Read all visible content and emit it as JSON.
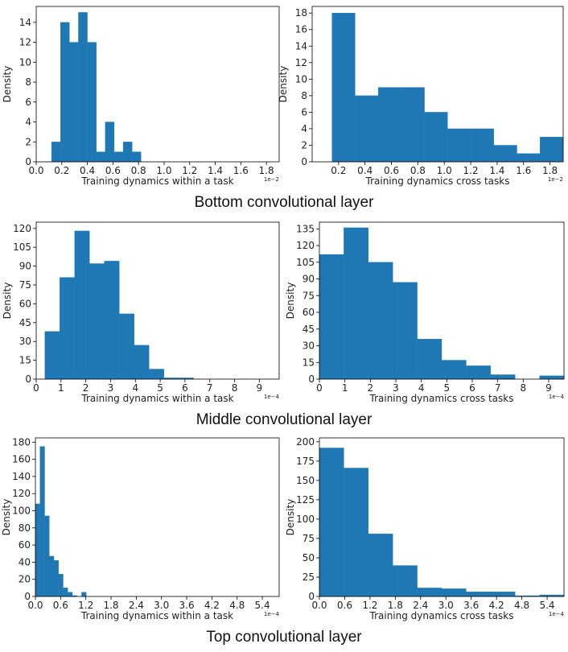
{
  "colors": {
    "bar": "#1f77b4",
    "bar_edge": "#2a7fbf",
    "axis": "#000000"
  },
  "sections": [
    {
      "title": "Bottom convolutional layer"
    },
    {
      "title": "Middle convolutional layer"
    },
    {
      "title": "Top convolutional layer"
    }
  ],
  "chart_data": [
    {
      "type": "bar",
      "title": "",
      "xlabel": "Training dynamics within a task",
      "ylabel": "Density",
      "sci_label": "1e−2",
      "xlim": [
        0.0,
        1.9
      ],
      "ylim": [
        0,
        15.6
      ],
      "xticks": [
        0.0,
        0.2,
        0.4,
        0.6,
        0.8,
        1.0,
        1.2,
        1.4,
        1.6,
        1.8
      ],
      "xtick_labels": [
        "0.0",
        "0.2",
        "0.4",
        "0.6",
        "0.8",
        "1.0",
        "1.2",
        "1.4",
        "1.6",
        "1.8"
      ],
      "yticks": [
        0,
        2,
        4,
        6,
        8,
        10,
        12,
        14
      ],
      "ytick_labels": [
        "0",
        "2",
        "4",
        "6",
        "8",
        "10",
        "12",
        "14"
      ],
      "bin_edges": [
        0.12,
        0.19,
        0.26,
        0.33,
        0.4,
        0.47,
        0.54,
        0.61,
        0.68,
        0.75,
        0.82
      ],
      "values": [
        2,
        14,
        12,
        15,
        12,
        1,
        4,
        1,
        2,
        1
      ]
    },
    {
      "type": "bar",
      "title": "",
      "xlabel": "Training dynamics cross tasks",
      "ylabel": "Density",
      "sci_label": "1e−2",
      "xlim": [
        0.0,
        1.9
      ],
      "ylim": [
        0,
        18.8
      ],
      "xticks": [
        0.2,
        0.4,
        0.6,
        0.8,
        1.0,
        1.2,
        1.4,
        1.6,
        1.8
      ],
      "xtick_labels": [
        "0.2",
        "0.4",
        "0.6",
        "0.8",
        "1.0",
        "1.2",
        "1.4",
        "1.6",
        "1.8"
      ],
      "yticks": [
        0,
        2,
        4,
        6,
        8,
        10,
        12,
        14,
        16,
        18
      ],
      "ytick_labels": [
        "0",
        "2",
        "4",
        "6",
        "8",
        "10",
        "12",
        "14",
        "16",
        "18"
      ],
      "bin_edges": [
        0.15,
        0.325,
        0.5,
        0.675,
        0.85,
        1.025,
        1.2,
        1.375,
        1.55,
        1.725,
        1.9
      ],
      "values": [
        18,
        8,
        9,
        9,
        6,
        4,
        4,
        2,
        1,
        3
      ]
    },
    {
      "type": "bar",
      "title": "",
      "xlabel": "Training dynamics within a task",
      "ylabel": "Density",
      "sci_label": "1e−4",
      "xlim": [
        0,
        9.8
      ],
      "ylim": [
        0,
        125
      ],
      "xticks": [
        0,
        1,
        2,
        3,
        4,
        5,
        6,
        7,
        8,
        9
      ],
      "xtick_labels": [
        "0",
        "1",
        "2",
        "3",
        "4",
        "5",
        "6",
        "7",
        "8",
        "9"
      ],
      "yticks": [
        0,
        15,
        30,
        45,
        60,
        75,
        90,
        105,
        120
      ],
      "ytick_labels": [
        "0",
        "15",
        "30",
        "45",
        "60",
        "75",
        "90",
        "105",
        "120"
      ],
      "bin_edges": [
        0.35,
        0.95,
        1.55,
        2.15,
        2.75,
        3.35,
        3.95,
        4.55,
        5.15,
        5.75,
        6.35
      ],
      "values": [
        38,
        81,
        118,
        92,
        94,
        52,
        27,
        8,
        1,
        1
      ]
    },
    {
      "type": "bar",
      "title": "",
      "xlabel": "Training dynamics cross tasks",
      "ylabel": "Density",
      "sci_label": "1e−4",
      "xlim": [
        0,
        9.6
      ],
      "ylim": [
        0,
        141
      ],
      "xticks": [
        0,
        1,
        2,
        3,
        4,
        5,
        6,
        7,
        8,
        9
      ],
      "xtick_labels": [
        "0",
        "1",
        "2",
        "3",
        "4",
        "5",
        "6",
        "7",
        "8",
        "9"
      ],
      "yticks": [
        0,
        15,
        30,
        45,
        60,
        75,
        90,
        105,
        120,
        135
      ],
      "ytick_labels": [
        "0",
        "15",
        "30",
        "45",
        "60",
        "75",
        "90",
        "105",
        "120",
        "135"
      ],
      "bin_edges": [
        0,
        0.96,
        1.92,
        2.88,
        3.84,
        4.8,
        5.76,
        6.72,
        7.68,
        8.64,
        9.6
      ],
      "values": [
        112,
        136,
        105,
        87,
        36,
        17,
        12,
        4,
        0,
        3
      ]
    },
    {
      "type": "bar",
      "title": "",
      "xlabel": "Training dynamics within a task",
      "ylabel": "Density",
      "sci_label": "1e−4",
      "xlim": [
        0,
        5.8
      ],
      "ylim": [
        0,
        185
      ],
      "xticks": [
        0.0,
        0.6,
        1.2,
        1.8,
        2.4,
        3.0,
        3.6,
        4.2,
        4.8,
        5.4
      ],
      "xtick_labels": [
        "0.0",
        "0.6",
        "1.2",
        "1.8",
        "2.4",
        "3.0",
        "3.6",
        "4.2",
        "4.8",
        "5.4"
      ],
      "yticks": [
        0,
        20,
        40,
        60,
        80,
        100,
        120,
        140,
        160,
        180
      ],
      "ytick_labels": [
        "0",
        "20",
        "40",
        "60",
        "80",
        "100",
        "120",
        "140",
        "160",
        "180"
      ],
      "bin_edges": [
        0.0,
        0.11,
        0.22,
        0.33,
        0.44,
        0.55,
        0.66,
        0.77,
        0.88,
        0.99,
        1.1,
        1.21
      ],
      "values": [
        108,
        175,
        94,
        47,
        42,
        26,
        10,
        5,
        1,
        0,
        5
      ]
    },
    {
      "type": "bar",
      "title": "",
      "xlabel": "Training dynamics cross tasks",
      "ylabel": "Density",
      "sci_label": "1e−4",
      "xlim": [
        0,
        5.8
      ],
      "ylim": [
        0,
        205
      ],
      "xticks": [
        0.0,
        0.6,
        1.2,
        1.8,
        2.4,
        3.0,
        3.6,
        4.2,
        4.8,
        5.4
      ],
      "xtick_labels": [
        "0.0",
        "0.6",
        "1.2",
        "1.8",
        "2.4",
        "3.0",
        "3.6",
        "4.2",
        "4.8",
        "5.4"
      ],
      "yticks": [
        0,
        25,
        50,
        75,
        100,
        125,
        150,
        175,
        200
      ],
      "ytick_labels": [
        "0",
        "25",
        "50",
        "75",
        "100",
        "125",
        "150",
        "175",
        "200"
      ],
      "bin_edges": [
        0.0,
        0.58,
        1.16,
        1.74,
        2.32,
        2.9,
        3.48,
        4.06,
        4.64,
        5.22,
        5.8
      ],
      "values": [
        192,
        166,
        81,
        40,
        11,
        10,
        6,
        6,
        1,
        2
      ]
    }
  ]
}
